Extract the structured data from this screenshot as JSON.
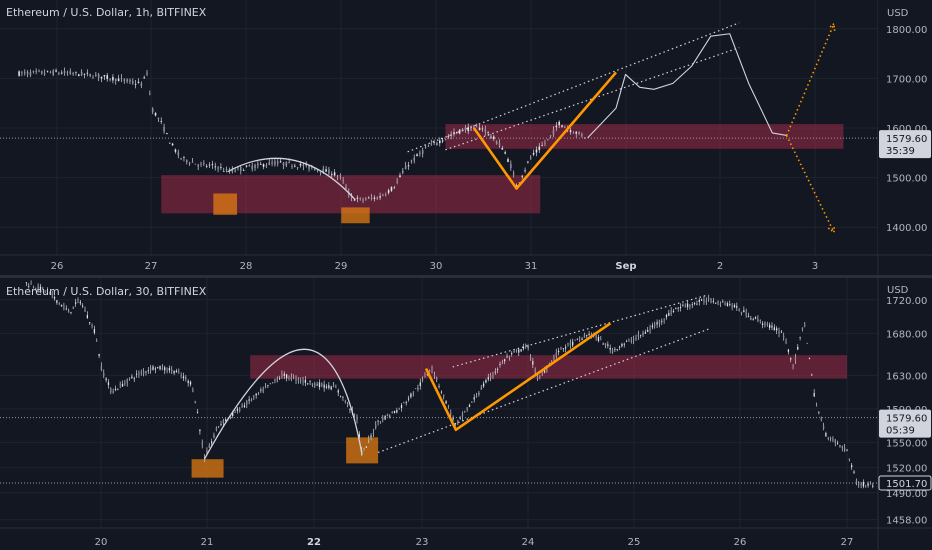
{
  "chart_data": [
    {
      "type": "candlestick",
      "title": "Ethereum / U.S. Dollar, 1h, BITFINEX",
      "axis_unit": "USD",
      "x_tick_labels": [
        "26",
        "27",
        "28",
        "29",
        "30",
        "31",
        "Sep",
        "2",
        "3"
      ],
      "x_range": [
        25.6,
        34.1
      ],
      "y_tick_labels": [
        "1800.00",
        "1700.00",
        "1600.00",
        "1500.00",
        "1400.00"
      ],
      "y_ticks": [
        1800,
        1700,
        1600,
        1500,
        1400
      ],
      "ylim": [
        1344,
        1858
      ],
      "last_price": {
        "label": "1579.60",
        "countdown": "35:39",
        "value": 1579.6
      },
      "price_path": [
        [
          25.6,
          1710
        ],
        [
          26.0,
          1712
        ],
        [
          26.3,
          1708
        ],
        [
          26.6,
          1700
        ],
        [
          26.9,
          1688
        ],
        [
          26.95,
          1712
        ],
        [
          27.0,
          1640
        ],
        [
          27.1,
          1610
        ],
        [
          27.2,
          1570
        ],
        [
          27.3,
          1540
        ],
        [
          27.5,
          1526
        ],
        [
          27.7,
          1522
        ],
        [
          27.8,
          1512
        ],
        [
          28.0,
          1520
        ],
        [
          28.3,
          1530
        ],
        [
          28.6,
          1524
        ],
        [
          28.9,
          1510
        ],
        [
          29.0,
          1500
        ],
        [
          29.1,
          1460
        ],
        [
          29.2,
          1455
        ],
        [
          29.4,
          1460
        ],
        [
          29.55,
          1480
        ],
        [
          29.7,
          1525
        ],
        [
          29.9,
          1560
        ],
        [
          30.1,
          1580
        ],
        [
          30.3,
          1598
        ],
        [
          30.5,
          1600
        ],
        [
          30.7,
          1560
        ],
        [
          30.8,
          1520
        ],
        [
          30.85,
          1483
        ],
        [
          31.0,
          1540
        ],
        [
          31.2,
          1580
        ],
        [
          31.3,
          1610
        ],
        [
          31.4,
          1598
        ],
        [
          31.6,
          1580
        ]
      ],
      "projection_path": [
        [
          31.6,
          1580
        ],
        [
          31.9,
          1640
        ],
        [
          32.0,
          1708
        ],
        [
          32.15,
          1682
        ],
        [
          32.3,
          1678
        ],
        [
          32.5,
          1690
        ],
        [
          32.7,
          1725
        ],
        [
          32.9,
          1785
        ],
        [
          33.1,
          1790
        ],
        [
          33.3,
          1690
        ],
        [
          33.55,
          1590
        ],
        [
          33.7,
          1585
        ]
      ],
      "projection_targets": [
        [
          34.2,
          1810
        ],
        [
          34.2,
          1390
        ]
      ],
      "zones": [
        {
          "x": [
            27.1,
            31.1
          ],
          "y": [
            1428,
            1505
          ]
        },
        {
          "x": [
            30.1,
            34.3
          ],
          "y": [
            1558,
            1608
          ]
        }
      ],
      "markers": [
        {
          "x": [
            27.65,
            27.9
          ],
          "y": [
            1425,
            1468
          ]
        },
        {
          "x": [
            29.0,
            29.3
          ],
          "y": [
            1408,
            1440
          ]
        }
      ],
      "cup_arc": {
        "from": [
          27.8,
          1512
        ],
        "peak": [
          28.5,
          1535
        ],
        "to": [
          29.15,
          1455
        ]
      },
      "zigzag": [
        [
          30.4,
          1600
        ],
        [
          30.85,
          1478
        ],
        [
          31.9,
          1712
        ]
      ],
      "channel": {
        "upper": [
          [
            29.7,
            1552
          ],
          [
            33.2,
            1812
          ]
        ],
        "lower": [
          [
            30.1,
            1556
          ],
          [
            33.2,
            1762
          ]
        ]
      }
    },
    {
      "type": "candlestick",
      "title": "Ethereum / U.S. Dollar, 30, BITFINEX",
      "axis_unit": "USD",
      "x_tick_labels": [
        "20",
        "21",
        "22",
        "23",
        "24",
        "25",
        "26",
        "27"
      ],
      "x_range": [
        19.3,
        27.3
      ],
      "y_tick_labels": [
        "1720.00",
        "1680.00",
        "1630.00",
        "1590.00",
        "1550.00",
        "1520.00",
        "1490.00",
        "1458.00"
      ],
      "y_ticks": [
        1720,
        1680,
        1630,
        1590,
        1550,
        1520,
        1490,
        1458
      ],
      "ylim": [
        1448,
        1746
      ],
      "last_price": {
        "label": "1579.60",
        "countdown": "05:39",
        "value": 1579.6
      },
      "low_price": {
        "label": "1501.70",
        "value": 1501.7
      },
      "price_path": [
        [
          19.3,
          1740
        ],
        [
          19.5,
          1730
        ],
        [
          19.7,
          1705
        ],
        [
          19.8,
          1720
        ],
        [
          19.95,
          1680
        ],
        [
          20.0,
          1640
        ],
        [
          20.1,
          1610
        ],
        [
          20.3,
          1628
        ],
        [
          20.5,
          1640
        ],
        [
          20.7,
          1635
        ],
        [
          20.85,
          1620
        ],
        [
          20.9,
          1590
        ],
        [
          20.97,
          1530
        ],
        [
          21.1,
          1570
        ],
        [
          21.3,
          1590
        ],
        [
          21.5,
          1610
        ],
        [
          21.7,
          1630
        ],
        [
          22.0,
          1620
        ],
        [
          22.2,
          1615
        ],
        [
          22.4,
          1580
        ],
        [
          22.45,
          1535
        ],
        [
          22.6,
          1575
        ],
        [
          22.8,
          1590
        ],
        [
          23.0,
          1620
        ],
        [
          23.1,
          1640
        ],
        [
          23.3,
          1580
        ],
        [
          23.33,
          1570
        ],
        [
          23.6,
          1620
        ],
        [
          23.8,
          1650
        ],
        [
          24.0,
          1665
        ],
        [
          24.1,
          1625
        ],
        [
          24.3,
          1660
        ],
        [
          24.6,
          1680
        ],
        [
          24.8,
          1660
        ],
        [
          25.1,
          1680
        ],
        [
          25.4,
          1710
        ],
        [
          25.7,
          1720
        ],
        [
          25.9,
          1715
        ],
        [
          26.1,
          1700
        ],
        [
          26.4,
          1680
        ],
        [
          26.5,
          1640
        ],
        [
          26.6,
          1695
        ],
        [
          26.7,
          1600
        ],
        [
          26.8,
          1560
        ],
        [
          27.0,
          1540
        ],
        [
          27.1,
          1500
        ],
        [
          27.25,
          1500
        ]
      ],
      "zones": [
        {
          "x": [
            21.4,
            27.0
          ],
          "y": [
            1626,
            1654
          ]
        }
      ],
      "markers": [
        {
          "x": [
            20.85,
            21.15
          ],
          "y": [
            1508,
            1530
          ]
        },
        {
          "x": [
            22.3,
            22.6
          ],
          "y": [
            1525,
            1556
          ]
        }
      ],
      "cup_arc": {
        "from": [
          20.97,
          1530
        ],
        "peak": [
          21.9,
          1661
        ],
        "to": [
          22.45,
          1535
        ]
      },
      "zigzag": [
        [
          23.05,
          1638
        ],
        [
          23.33,
          1565
        ],
        [
          24.78,
          1692
        ]
      ],
      "channel": {
        "upper": [
          [
            23.3,
            1640
          ],
          [
            25.7,
            1726
          ]
        ],
        "lower": [
          [
            22.6,
            1538
          ],
          [
            25.7,
            1685
          ]
        ]
      }
    }
  ]
}
